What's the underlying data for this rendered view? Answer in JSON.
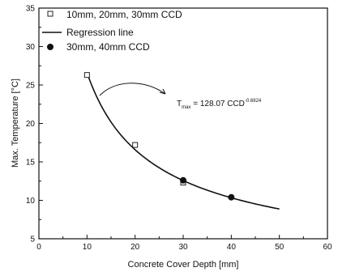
{
  "chart_data": {
    "type": "scatter",
    "title": "",
    "xlabel": "Concrete Cover Depth [mm]",
    "ylabel": "Max. Temperature [°C]",
    "xlim": [
      0,
      60
    ],
    "ylim": [
      5,
      35
    ],
    "x_ticks": [
      0,
      10,
      20,
      30,
      40,
      50,
      60
    ],
    "y_ticks": [
      5,
      10,
      15,
      20,
      25,
      30,
      35
    ],
    "grid": false,
    "legend_position": "top-left",
    "series": [
      {
        "name": "10mm, 20mm, 30mm CCD",
        "marker": "open-square",
        "color": "#222222",
        "points": [
          {
            "x": 10,
            "y": 26.3
          },
          {
            "x": 20,
            "y": 17.2
          },
          {
            "x": 30,
            "y": 12.3
          }
        ]
      },
      {
        "name": "Regression line",
        "marker": "line",
        "color": "#111111",
        "function": {
          "a": 128.07,
          "b": -0.6824
        },
        "x_range": [
          10,
          50
        ]
      },
      {
        "name": "30mm, 40mm CCD",
        "marker": "filled-circle",
        "color": "#111111",
        "points": [
          {
            "x": 30,
            "y": 12.6
          },
          {
            "x": 40,
            "y": 10.4
          }
        ]
      }
    ],
    "annotation": {
      "base": "T",
      "base_sub": "max",
      "text": " = 128.07 CCD",
      "exponent": "-0.6824"
    }
  }
}
